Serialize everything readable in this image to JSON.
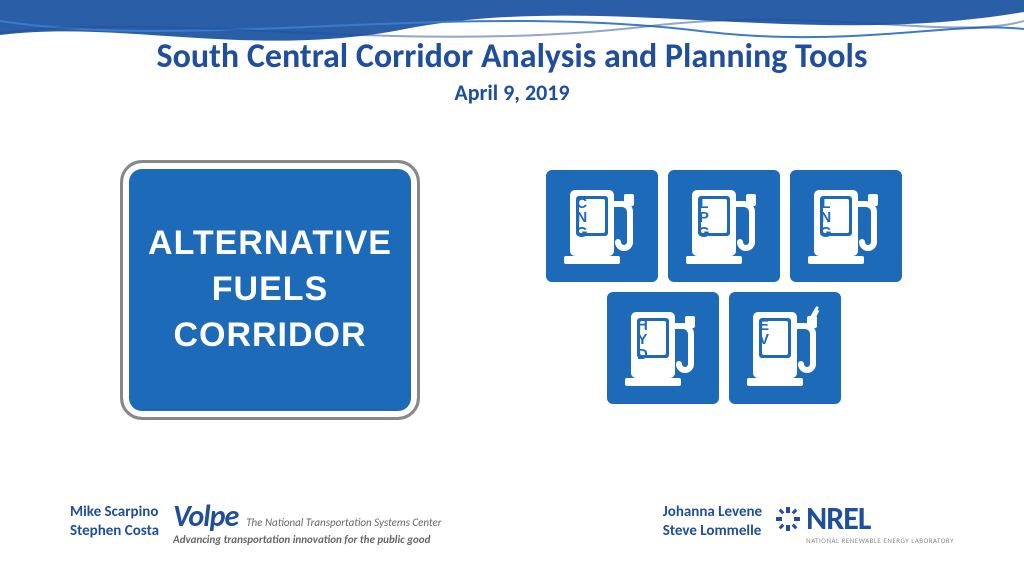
{
  "colors": {
    "brand_blue": "#1f4e9c",
    "sign_blue": "#1d6bb8",
    "white": "#ffffff",
    "gray_text": "#666666",
    "gray_light": "#888888"
  },
  "typography": {
    "title_fontsize": 34,
    "subtitle_fontsize": 22,
    "sign_fontsize": 34,
    "fuel_label_fontsize": 15,
    "author_fontsize": 15
  },
  "title": "South Central Corridor Analysis and Planning Tools",
  "subtitle": "April 9, 2019",
  "corridor_sign": {
    "line1": "ALTERNATIVE",
    "line2": "FUELS",
    "line3": "CORRIDOR"
  },
  "fuel_tiles": {
    "row1": [
      {
        "id": "cng",
        "label": "C\nN\nG",
        "icon": "pump"
      },
      {
        "id": "lpg",
        "label": "L\nP\nG",
        "icon": "pump"
      },
      {
        "id": "lng",
        "label": "L\nN\nG",
        "icon": "pump"
      }
    ],
    "row2": [
      {
        "id": "hyd",
        "label": "H\nY\nD",
        "icon": "pump"
      },
      {
        "id": "ev",
        "label": "E\nV",
        "icon": "ev-pump"
      }
    ]
  },
  "footer": {
    "left": {
      "authors": [
        "Mike Scarpino",
        "Stephen Costa"
      ],
      "logo_name": "Volpe",
      "tagline1": "The National Transportation Systems Center",
      "tagline2": "Advancing transportation innovation for the public good"
    },
    "right": {
      "authors": [
        "Johanna Levene",
        "Steve Lommelle"
      ],
      "logo_name": "NREL",
      "tagline": "NATIONAL RENEWABLE ENERGY LABORATORY"
    }
  }
}
